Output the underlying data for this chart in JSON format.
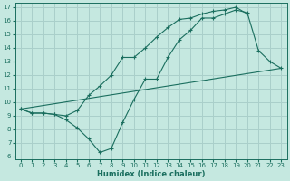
{
  "xlabel": "Humidex (Indice chaleur)",
  "xlim": [
    -0.5,
    23.5
  ],
  "ylim": [
    5.8,
    17.3
  ],
  "xticks": [
    0,
    1,
    2,
    3,
    4,
    5,
    6,
    7,
    8,
    9,
    10,
    11,
    12,
    13,
    14,
    15,
    16,
    17,
    18,
    19,
    20,
    21,
    22,
    23
  ],
  "yticks": [
    6,
    7,
    8,
    9,
    10,
    11,
    12,
    13,
    14,
    15,
    16,
    17
  ],
  "bg_color": "#c5e8e0",
  "line_color": "#1a6e5e",
  "grid_color": "#aacfca",
  "lines": [
    {
      "x": [
        0,
        1,
        2,
        3,
        4,
        5,
        6,
        7,
        8,
        9,
        10,
        11,
        12,
        13,
        14,
        15,
        16,
        17,
        18,
        19,
        20
      ],
      "y": [
        9.5,
        9.2,
        9.2,
        9.1,
        9.0,
        9.4,
        10.5,
        11.2,
        12.0,
        13.3,
        13.3,
        14.0,
        14.8,
        15.5,
        16.1,
        16.2,
        16.5,
        16.7,
        16.8,
        17.0,
        16.5
      ],
      "marker": "+"
    },
    {
      "x": [
        0,
        1,
        2,
        3,
        4,
        5,
        6,
        7,
        8,
        9,
        10,
        11,
        12,
        13,
        14,
        15,
        16,
        17,
        18,
        19,
        20,
        21,
        22,
        23
      ],
      "y": [
        9.5,
        9.2,
        9.2,
        9.1,
        8.7,
        8.1,
        7.3,
        6.3,
        6.6,
        8.5,
        10.2,
        11.7,
        11.7,
        13.3,
        14.6,
        15.3,
        16.2,
        16.2,
        16.5,
        16.8,
        16.6,
        13.8,
        13.0,
        12.5
      ],
      "marker": "+"
    },
    {
      "x": [
        0,
        23
      ],
      "y": [
        9.5,
        12.5
      ],
      "marker": null
    }
  ]
}
